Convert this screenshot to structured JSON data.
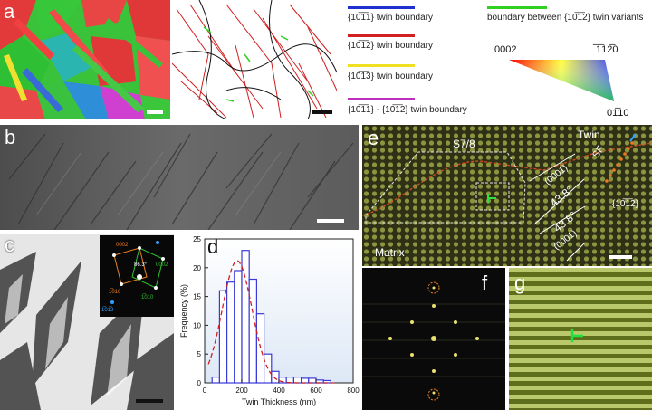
{
  "labels": {
    "a": "a",
    "b": "b",
    "c": "c",
    "d": "d",
    "e": "e",
    "f": "f",
    "g": "g"
  },
  "legend": {
    "items": [
      {
        "text": "{10̅1̅1} twin boundary",
        "color": "#1f2fd0"
      },
      {
        "text": "{10̅1̅2} twin boundary",
        "color": "#d02020"
      },
      {
        "text": "{10̅1̅3} twin boundary",
        "color": "#f0e020"
      },
      {
        "text": "{10̅1̅1} - {10̅1̅2} twin boundary",
        "color": "#c030c0"
      }
    ],
    "variant": {
      "text": "boundary between {10̅1̅2} twin variants",
      "color": "#30d020"
    }
  },
  "triangle": {
    "top_left": "0002",
    "top_right": "̅1̅12̅0",
    "bottom": "01̅10"
  },
  "saed": {
    "angle": "86.3°",
    "spot_0002_left": "0002",
    "spot_0002_right": "0002",
    "spot_1010_left": "1̅010",
    "spot_1010_right": "1̅010",
    "spot_1012": "1̅01̅2"
  },
  "hrtem": {
    "s78": "S7/8",
    "twin": "Twin",
    "sf": "SF",
    "plane_1012": "{10̅1̅2}",
    "plane_0001_top": "(0001)",
    "plane_0001_bottom": "(0001)",
    "angle_top": "43.8°",
    "angle_bottom": "43.8°",
    "matrix": "Matrix"
  },
  "chart_data": {
    "type": "bar",
    "xlabel": "Twin Thickness (nm)",
    "ylabel": "Frequency (%)",
    "xlim": [
      0,
      800
    ],
    "ylim": [
      0,
      25
    ],
    "xticks": [
      0,
      200,
      400,
      600,
      800
    ],
    "yticks": [
      0,
      5,
      10,
      15,
      20,
      25
    ],
    "bin_width": 40,
    "bin_centers": [
      60,
      100,
      140,
      180,
      220,
      260,
      300,
      340,
      380,
      420,
      460,
      500,
      540,
      580,
      620,
      660
    ],
    "values": [
      1,
      16,
      17.5,
      19.5,
      23,
      18,
      12,
      5,
      2,
      1,
      1,
      1,
      0.8,
      0.8,
      0.5,
      0.4
    ],
    "fit": {
      "type": "gaussian",
      "center": 175,
      "sigma": 80,
      "peak": 21.2
    },
    "colors": {
      "bar_edge": "#3a3ad6",
      "bar_fill": "#ffffff",
      "fit": "#d02020"
    }
  }
}
